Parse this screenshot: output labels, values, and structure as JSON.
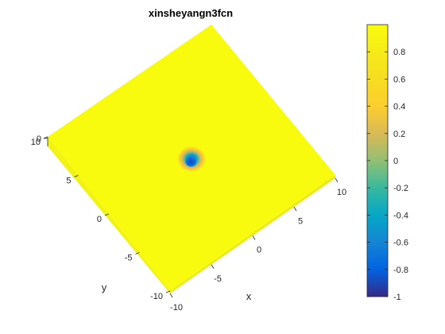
{
  "chart_data": {
    "type": "surface",
    "title": "xinsheyangn3fcn",
    "xlabel": "x",
    "ylabel": "y",
    "zlabel": "",
    "x_ticks": [
      "-10",
      "-5",
      "0",
      "5",
      "10"
    ],
    "y_ticks": [
      "-10",
      "-5",
      "0",
      "5",
      "10"
    ],
    "z_ticks": [
      "0"
    ],
    "xlim": [
      -10,
      10
    ],
    "ylim": [
      -10,
      10
    ],
    "surface": {
      "baseline_value": 1.0,
      "feature": "narrow dip centered near origin",
      "center": [
        0,
        0
      ],
      "min_value": -0.85,
      "ring_value": 0.6
    },
    "colorbar": {
      "colormap": "parula",
      "range": [
        -1,
        1
      ],
      "ticks": [
        "-1",
        "-0.8",
        "-0.6",
        "-0.4",
        "-0.2",
        "0",
        "0.2",
        "0.4",
        "0.6",
        "0.8"
      ]
    },
    "grid": false
  }
}
